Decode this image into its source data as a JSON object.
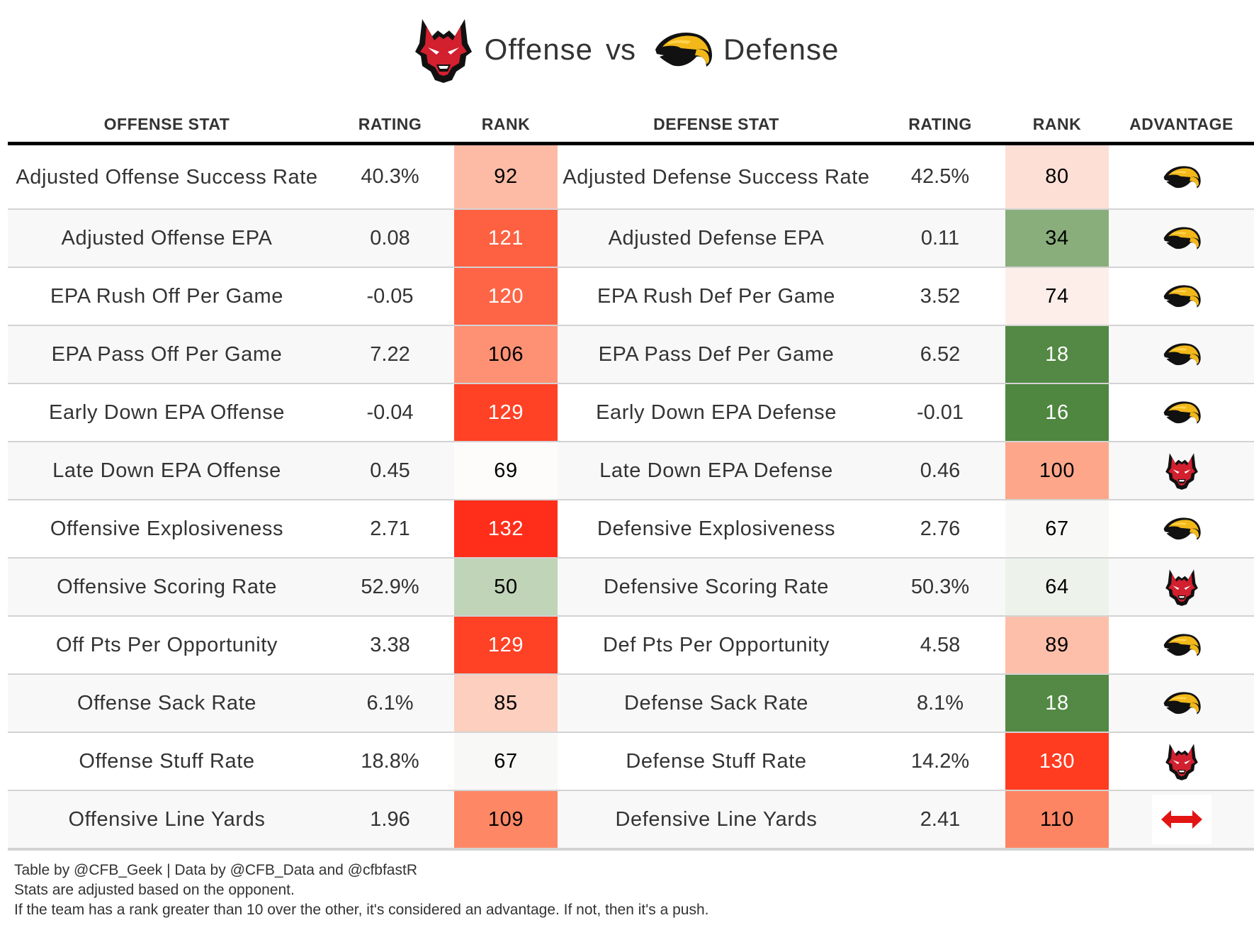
{
  "title": {
    "offense_word": "Offense",
    "vs_word": "vs",
    "defense_word": "Defense",
    "offense_logo": "red-wolf-logo",
    "defense_logo": "golden-eagle-logo"
  },
  "chart_data": {
    "type": "table",
    "title": "Offense vs Defense",
    "columns": [
      "OFFENSE STAT",
      "RATING",
      "RANK",
      "DEFENSE STAT",
      "RATING",
      "RANK",
      "ADVANTAGE"
    ],
    "rows": [
      {
        "off_stat": "Adjusted Offense Success Rate",
        "off_rating": "40.3%",
        "off_rank": 92,
        "off_rank_color": "#fdbba6",
        "def_stat": "Adjusted Defense Success Rate",
        "def_rating": "42.5%",
        "def_rank": 80,
        "def_rank_color": "#fddfd6",
        "advantage": "defense"
      },
      {
        "off_stat": "Adjusted Offense EPA",
        "off_rating": "0.08",
        "off_rank": 121,
        "off_rank_color": "#fe6142",
        "def_stat": "Adjusted Defense EPA",
        "def_rating": "0.11",
        "def_rank": 34,
        "def_rank_color": "#89ae7b",
        "advantage": "defense"
      },
      {
        "off_stat": "EPA Rush Off Per Game",
        "off_rating": "-0.05",
        "off_rank": 120,
        "off_rank_color": "#fe6546",
        "def_stat": "EPA Rush Def Per Game",
        "def_rating": "3.52",
        "def_rank": 74,
        "def_rank_color": "#fdeee9",
        "advantage": "defense"
      },
      {
        "off_stat": "EPA Pass Off Per Game",
        "off_rating": "7.22",
        "off_rank": 106,
        "off_rank_color": "#fe9174",
        "def_stat": "EPA Pass Def Per Game",
        "def_rating": "6.52",
        "def_rank": 18,
        "def_rank_color": "#538944",
        "advantage": "defense"
      },
      {
        "off_stat": "Early Down EPA Offense",
        "off_rating": "-0.04",
        "off_rank": 129,
        "off_rank_color": "#ff4125",
        "def_stat": "Early Down EPA Defense",
        "def_rating": "-0.01",
        "def_rank": 16,
        "def_rank_color": "#4f8640",
        "advantage": "defense"
      },
      {
        "off_stat": "Late Down EPA Offense",
        "off_rating": "0.45",
        "off_rank": 69,
        "off_rank_color": "#fefcfb",
        "def_stat": "Late Down EPA Defense",
        "def_rating": "0.46",
        "def_rank": 100,
        "def_rank_color": "#fea68a",
        "advantage": "offense"
      },
      {
        "off_stat": "Offensive Explosiveness",
        "off_rating": "2.71",
        "off_rank": 132,
        "off_rank_color": "#ff2e1a",
        "def_stat": "Defensive Explosiveness",
        "def_rating": "2.76",
        "def_rank": 67,
        "def_rank_color": "#f8f9f7",
        "advantage": "defense"
      },
      {
        "off_stat": "Offensive Scoring Rate",
        "off_rating": "52.9%",
        "off_rank": 50,
        "off_rank_color": "#c0d4b8",
        "def_stat": "Defensive Scoring Rate",
        "def_rating": "50.3%",
        "def_rank": 64,
        "def_rank_color": "#edf3eb",
        "advantage": "offense"
      },
      {
        "off_stat": "Off Pts Per Opportunity",
        "off_rating": "3.38",
        "off_rank": 129,
        "off_rank_color": "#ff4125",
        "def_stat": "Def Pts Per Opportunity",
        "def_rating": "4.58",
        "def_rank": 89,
        "def_rank_color": "#fdbfaa",
        "advantage": "defense"
      },
      {
        "off_stat": "Offense Sack Rate",
        "off_rating": "6.1%",
        "off_rank": 85,
        "off_rank_color": "#fdcfbf",
        "def_stat": "Defense Sack Rate",
        "def_rating": "8.1%",
        "def_rank": 18,
        "def_rank_color": "#538944",
        "advantage": "defense"
      },
      {
        "off_stat": "Offense Stuff Rate",
        "off_rating": "18.8%",
        "off_rank": 67,
        "off_rank_color": "#f8f9f7",
        "def_stat": "Defense Stuff Rate",
        "def_rating": "14.2%",
        "def_rank": 130,
        "def_rank_color": "#ff3b20",
        "advantage": "offense"
      },
      {
        "off_stat": "Offensive Line Yards",
        "off_rating": "1.96",
        "off_rank": 109,
        "off_rank_color": "#fe8766",
        "def_stat": "Defensive Line Yards",
        "def_rating": "2.41",
        "def_rank": 110,
        "def_rank_color": "#fe8564",
        "advantage": "push"
      }
    ],
    "advantage_icons": {
      "offense": "red-wolf-logo",
      "defense": "golden-eagle-logo",
      "push": "double-arrow-icon"
    },
    "color_scale": {
      "low_rank_good": "#4f8640",
      "middle": "#f8f8f8",
      "high_rank_bad": "#ff2e1a"
    }
  },
  "footer": {
    "line1": "Table by @CFB_Geek | Data by @CFB_Data and @cfbfastR",
    "line2": "Stats are adjusted based on the opponent.",
    "line3": "If the team has a rank greater than 10 over the other, it's considered an advantage. If not, then it's a push."
  }
}
